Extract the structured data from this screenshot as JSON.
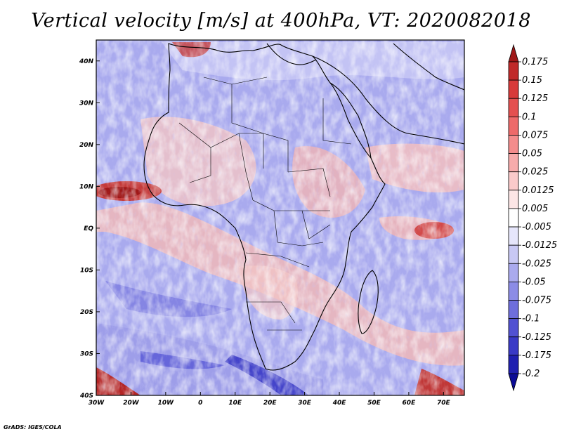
{
  "title": "Vertical velocity [m/s] at 400hPa, VT: 2020082018",
  "credit": "GrADS: IGES/COLA",
  "map": {
    "lat_labels": [
      "40N",
      "30N",
      "20N",
      "10N",
      "EQ",
      "10S",
      "20S",
      "30S",
      "40S"
    ],
    "lat_values": [
      40,
      30,
      20,
      10,
      0,
      -10,
      -20,
      -30,
      -40
    ],
    "lon_labels": [
      "30W",
      "20W",
      "10W",
      "0",
      "10E",
      "20E",
      "30E",
      "40E",
      "50E",
      "60E",
      "70E"
    ],
    "lon_values": [
      -30,
      -20,
      -10,
      0,
      10,
      20,
      30,
      40,
      50,
      60,
      70
    ],
    "lon_range": [
      -30,
      76
    ],
    "lat_range": [
      -40,
      45
    ]
  },
  "colorbar": {
    "labels": [
      "0.175",
      "0.15",
      "0.125",
      "0.1",
      "0.075",
      "0.05",
      "0.025",
      "0.0125",
      "0.005",
      "-0.005",
      "-0.0125",
      "-0.025",
      "-0.05",
      "-0.075",
      "-0.1",
      "-0.125",
      "-0.175",
      "-0.2"
    ],
    "colors": [
      "#a01818",
      "#c02a2a",
      "#d83a3a",
      "#e45050",
      "#ee6a6a",
      "#f48c8c",
      "#f7abab",
      "#fbcaca",
      "#fde6e6",
      "#ffffff",
      "#e6e6fb",
      "#c8c8f4",
      "#aaaaee",
      "#8c8ce6",
      "#6e6edc",
      "#5252d2",
      "#3a3ac6",
      "#2020b0",
      "#0c0c96"
    ],
    "top_color": "#a01818",
    "bottom_color": "#0c0c96"
  }
}
